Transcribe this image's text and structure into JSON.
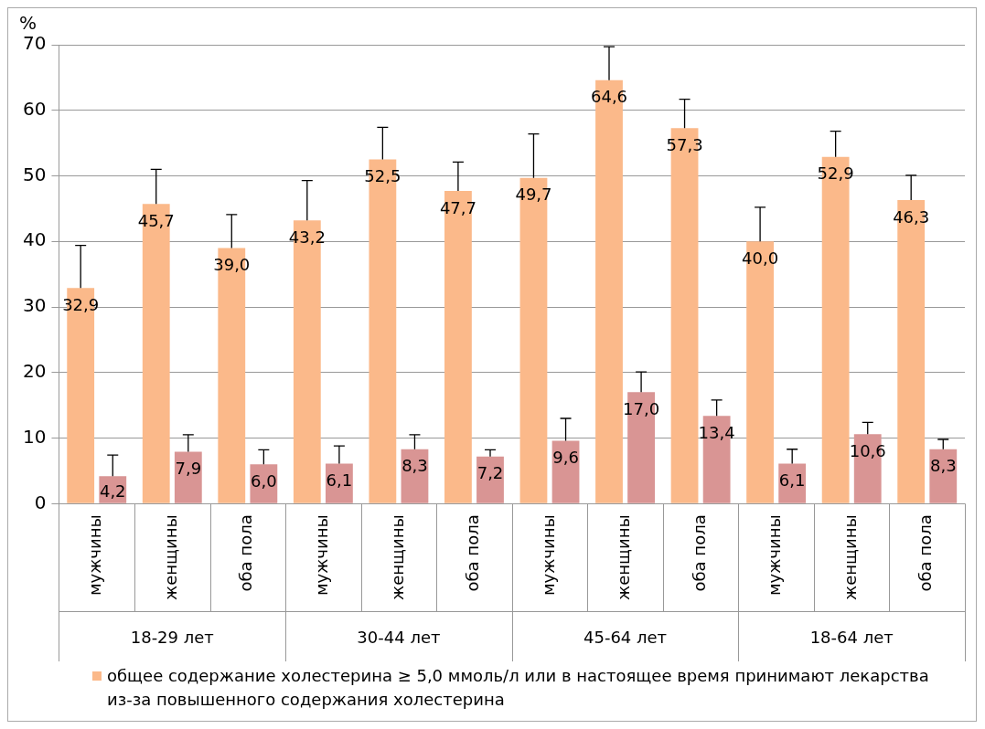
{
  "chart_data": {
    "type": "bar",
    "ylabel": "%",
    "categories": [
      "мужчины",
      "женщины",
      "оба пола",
      "мужчины",
      "женщины",
      "оба пола",
      "мужчины",
      "женщины",
      "оба пола",
      "мужчины",
      "женщины",
      "оба пола"
    ],
    "annotations": [
      "18-29 лет",
      "30-44 лет",
      "45-64 лет",
      "18-64 лет"
    ],
    "series": [
      {
        "name": "общее содержание холестерина ≥ 5,0 ммоль/л или в настоящее время принимают лекарства из-за повышенного содержания холестерина",
        "color": "#fbb98a",
        "values": [
          32.9,
          45.7,
          39.0,
          43.2,
          52.5,
          47.7,
          49.7,
          64.6,
          57.3,
          40.0,
          52.9,
          46.3
        ],
        "value_labels": [
          "32,9",
          "45,7",
          "39,0",
          "43,2",
          "52,5",
          "47,7",
          "49,7",
          "64,6",
          "57,3",
          "40,0",
          "52,9",
          "46,3"
        ],
        "errors": [
          [
            32.9,
            39.4
          ],
          [
            45.7,
            51.0
          ],
          [
            39.0,
            44.1
          ],
          [
            43.2,
            49.3
          ],
          [
            52.5,
            57.4
          ],
          [
            47.7,
            52.1
          ],
          [
            49.7,
            56.4
          ],
          [
            64.6,
            69.7
          ],
          [
            57.3,
            61.7
          ],
          [
            40.0,
            45.2
          ],
          [
            52.9,
            56.8
          ],
          [
            46.3,
            50.1
          ]
        ]
      },
      {
        "color": "#d99594",
        "values": [
          4.2,
          7.9,
          6.0,
          6.1,
          8.3,
          7.2,
          9.6,
          17.0,
          13.4,
          6.1,
          10.6,
          8.3
        ],
        "value_labels": [
          "4,2",
          "7,9",
          "6,0",
          "6,1",
          "8,3",
          "7,2",
          "9,6",
          "17,0",
          "13,4",
          "6,1",
          "10,6",
          "8,3"
        ],
        "errors": [
          [
            4.2,
            7.4
          ],
          [
            7.9,
            10.5
          ],
          [
            6.0,
            8.2
          ],
          [
            6.1,
            8.8
          ],
          [
            8.3,
            10.5
          ],
          [
            7.2,
            8.2
          ],
          [
            9.6,
            13.0
          ],
          [
            17.0,
            20.1
          ],
          [
            13.4,
            15.8
          ],
          [
            6.1,
            8.3
          ],
          [
            10.6,
            12.4
          ],
          [
            8.3,
            9.8
          ]
        ]
      }
    ],
    "ylim": [
      0,
      70
    ],
    "yticks": [
      0,
      10,
      20,
      30,
      40,
      50,
      60,
      70
    ],
    "grid": "y",
    "legend": "bottom"
  }
}
